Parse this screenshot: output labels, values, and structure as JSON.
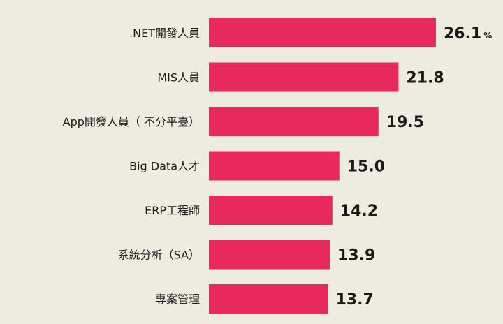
{
  "chart_data": {
    "type": "bar",
    "orientation": "horizontal",
    "categories": [
      ".NET開發人員",
      "MIS人員",
      "App開發人員（ 不分平臺）",
      "Big Data人才",
      "ERP工程師",
      "系統分析（SA）",
      "專案管理"
    ],
    "values": [
      26.1,
      21.8,
      19.5,
      15.0,
      14.2,
      13.9,
      13.7
    ],
    "value_labels": [
      "26.1",
      "21.8",
      "19.5",
      "15.0",
      "14.2",
      "13.9",
      "13.7"
    ],
    "unit": "%",
    "title": "",
    "xlabel": "",
    "ylabel": "",
    "grid": false,
    "bar_color": "#e8295e"
  }
}
